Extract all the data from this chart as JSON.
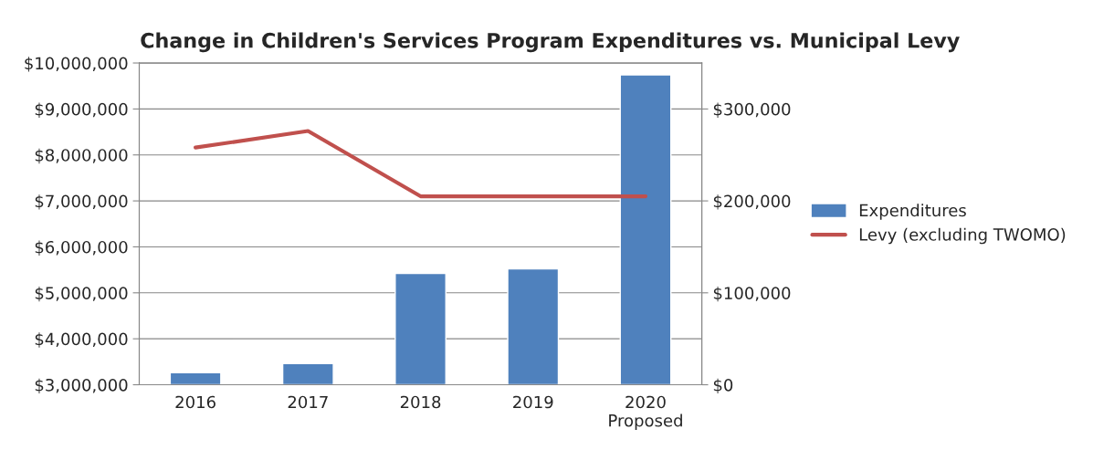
{
  "chart_data": {
    "type": "bar",
    "title": "Change in Children's Services Program Expenditures vs. Municipal Levy",
    "categories": [
      "2016",
      "2017",
      "2018",
      "2019",
      "2020\nProposed"
    ],
    "series": [
      {
        "name": "Expenditures",
        "color": "#4f81bd",
        "values": [
          3260000,
          3460000,
          5420000,
          5520000,
          9740000
        ]
      },
      {
        "name": "Levy (excluding TWOMO)",
        "type": "line",
        "axis": "y2",
        "color": "#c0504d",
        "values": [
          258000,
          276000,
          205000,
          205000,
          205000
        ]
      }
    ],
    "ylim": [
      3000000,
      10000000
    ],
    "yticks": [
      {
        "value": 3000000,
        "label": "$3,000,000"
      },
      {
        "value": 4000000,
        "label": "$4,000,000"
      },
      {
        "value": 5000000,
        "label": "$5,000,000"
      },
      {
        "value": 6000000,
        "label": "$6,000,000"
      },
      {
        "value": 7000000,
        "label": "$7,000,000"
      },
      {
        "value": 8000000,
        "label": "$8,000,000"
      },
      {
        "value": 9000000,
        "label": "$9,000,000"
      },
      {
        "value": 10000000,
        "label": "$10,000,000"
      }
    ],
    "y2lim": [
      0,
      350000
    ],
    "y2ticks": [
      {
        "value": 0,
        "label": "$0"
      },
      {
        "value": 100000,
        "label": "$100,000"
      },
      {
        "value": 200000,
        "label": "$200,000"
      },
      {
        "value": 300000,
        "label": "$300,000"
      }
    ],
    "grid": "y",
    "legend": "right",
    "marker": "none",
    "line_style": "solid"
  }
}
